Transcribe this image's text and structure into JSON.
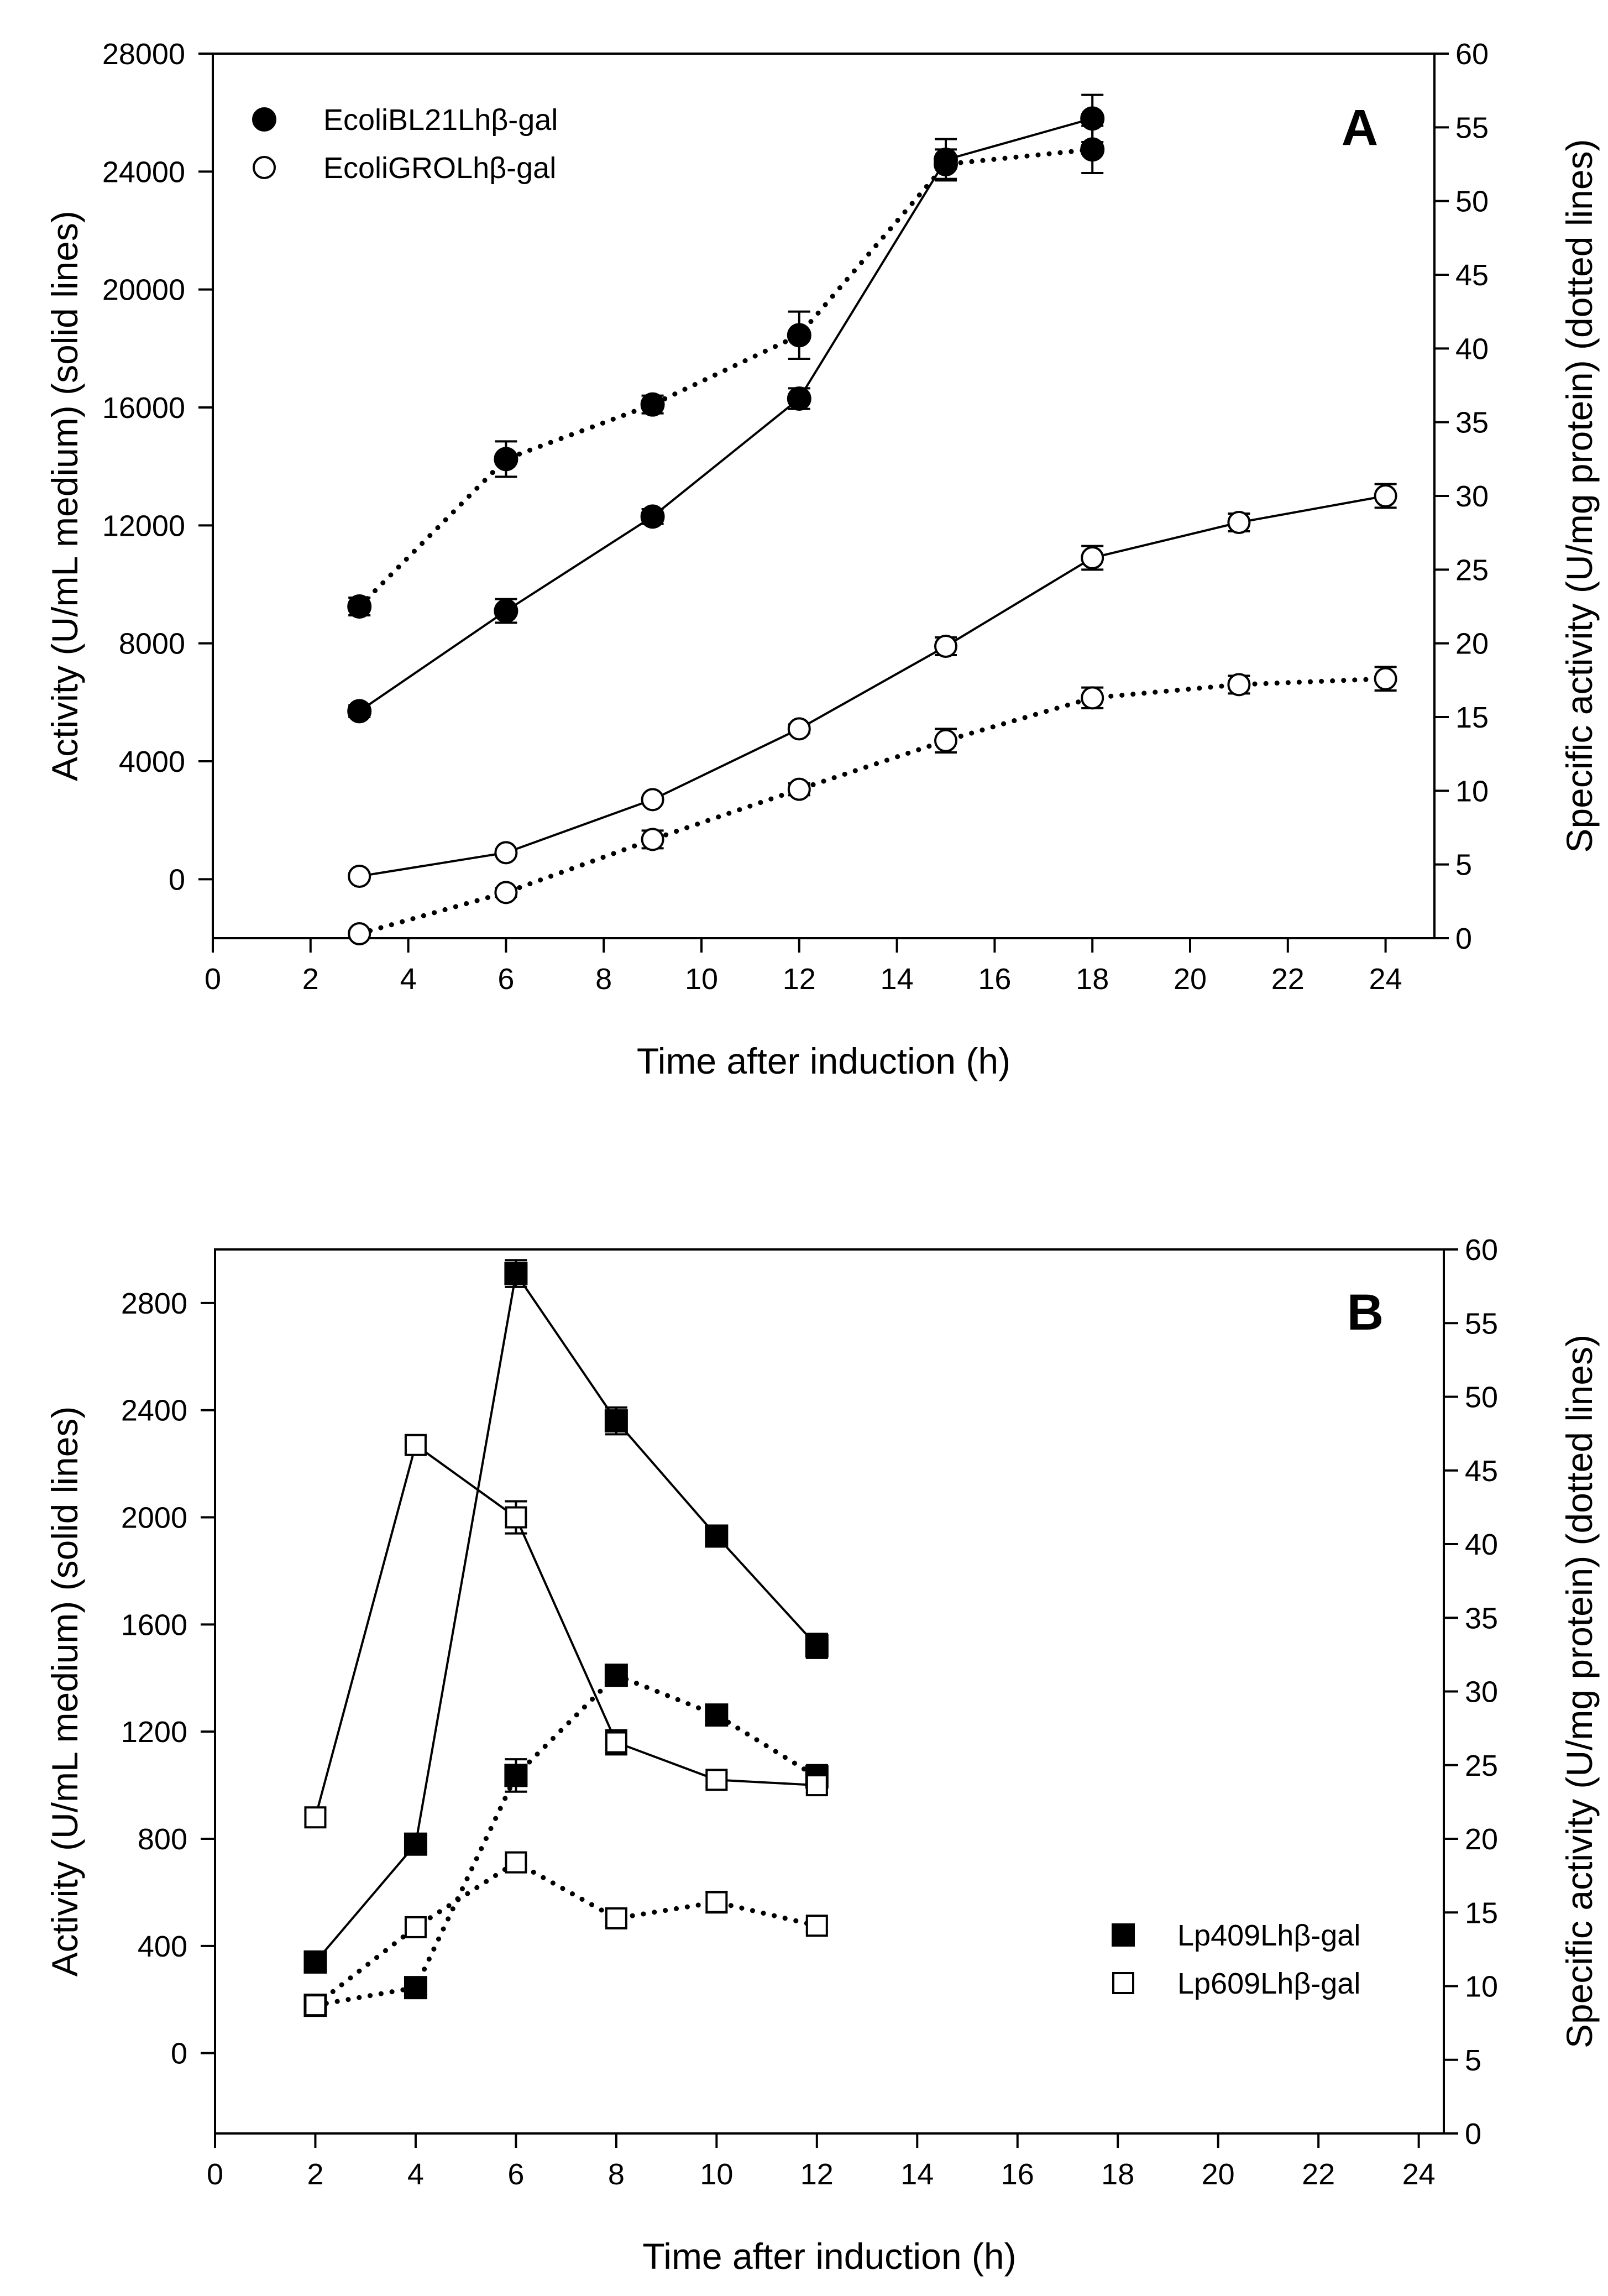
{
  "chart_data": [
    {
      "type": "line",
      "panel_label": "A",
      "xlabel": "Time after induction (h)",
      "ylabel_left": "Activity (U/mL medium) (solid lines)",
      "ylabel_right": "Specific activity (U/mg protein) (dotted lines)",
      "xlim": [
        0,
        25
      ],
      "ylim_left": [
        -2000,
        28000
      ],
      "ylim_right": [
        0,
        60
      ],
      "x_ticks": [
        0,
        2,
        4,
        6,
        8,
        10,
        12,
        14,
        16,
        18,
        20,
        22,
        24
      ],
      "yleft_ticks": [
        0,
        4000,
        8000,
        12000,
        16000,
        20000,
        24000,
        28000
      ],
      "yright_ticks": [
        0,
        5,
        10,
        15,
        20,
        25,
        30,
        35,
        40,
        45,
        50,
        55,
        60
      ],
      "legend_position": "top-left",
      "legend": [
        {
          "label": "EcoliBL21Lhβ-gal",
          "marker": "filled-circle"
        },
        {
          "label": "EcoliGROLhβ-gal",
          "marker": "open-circle"
        }
      ],
      "series": [
        {
          "name": "EcoliBL21Lhβ-gal activity",
          "axis": "left",
          "style": "solid",
          "marker": "filled-circle",
          "x": [
            3,
            6,
            9,
            12,
            15,
            18
          ],
          "values": [
            5700,
            9100,
            12300,
            16300,
            24400,
            25800
          ],
          "errors": [
            200,
            400,
            250,
            350,
            700,
            800
          ]
        },
        {
          "name": "EcoliBL21Lhβ-gal specific activity",
          "axis": "right",
          "style": "dotted",
          "marker": "filled-circle",
          "x": [
            3,
            6,
            9,
            12,
            15,
            18
          ],
          "values": [
            22.5,
            32.5,
            36.2,
            40.9,
            52.5,
            53.5
          ],
          "errors": [
            0.6,
            1.2,
            0.6,
            1.6,
            1.0,
            1.6
          ]
        },
        {
          "name": "EcoliGROLhβ-gal activity",
          "axis": "left",
          "style": "solid",
          "marker": "open-circle",
          "x": [
            3,
            6,
            9,
            12,
            15,
            18,
            21,
            24
          ],
          "values": [
            100,
            900,
            2700,
            5100,
            7900,
            10900,
            12100,
            13000
          ],
          "errors": [
            100,
            100,
            100,
            150,
            300,
            400,
            300,
            400
          ]
        },
        {
          "name": "EcoliGROLhβ-gal specific activity",
          "axis": "right",
          "style": "dotted",
          "marker": "open-circle",
          "x": [
            3,
            6,
            9,
            12,
            15,
            18,
            21,
            24
          ],
          "values": [
            0.3,
            3.1,
            6.7,
            10.1,
            13.4,
            16.3,
            17.2,
            17.6
          ],
          "errors": [
            0.2,
            0.3,
            0.6,
            0.4,
            0.8,
            0.7,
            0.6,
            0.8
          ]
        }
      ]
    },
    {
      "type": "line",
      "panel_label": "B",
      "xlabel": "Time after induction (h)",
      "ylabel_left": "Activity (U/mL medium) (solid lines)",
      "ylabel_right": "Specific activity (U/mg protein) (dotted lines)",
      "xlim": [
        0,
        24.5
      ],
      "ylim_left": [
        -300,
        3000
      ],
      "ylim_right": [
        0,
        60
      ],
      "x_ticks": [
        0,
        2,
        4,
        6,
        8,
        10,
        12,
        14,
        16,
        18,
        20,
        22,
        24
      ],
      "yleft_ticks": [
        0,
        400,
        800,
        1200,
        1600,
        2000,
        2400,
        2800
      ],
      "yright_ticks": [
        0,
        5,
        10,
        15,
        20,
        25,
        30,
        35,
        40,
        45,
        50,
        55,
        60
      ],
      "legend_position": "bottom-right",
      "legend": [
        {
          "label": "Lp409Lhβ-gal",
          "marker": "filled-square"
        },
        {
          "label": "Lp609Lhβ-gal",
          "marker": "open-square"
        }
      ],
      "series": [
        {
          "name": "Lp409Lhβ-gal activity",
          "axis": "left",
          "style": "solid",
          "marker": "filled-square",
          "x": [
            2,
            4,
            6,
            8,
            10,
            12
          ],
          "values": [
            340,
            780,
            2910,
            2360,
            1930,
            1520
          ],
          "errors": [
            25,
            30,
            50,
            50,
            30,
            45
          ]
        },
        {
          "name": "Lp409Lhβ-gal specific activity",
          "axis": "right",
          "style": "dotted",
          "marker": "filled-square",
          "x": [
            2,
            4,
            6,
            8,
            10,
            12
          ],
          "values": [
            8.7,
            9.9,
            24.3,
            31.1,
            28.4,
            24.2
          ],
          "errors": [
            0.4,
            0.4,
            1.1,
            0.5,
            0.4,
            0.8
          ]
        },
        {
          "name": "Lp609Lhβ-gal activity",
          "axis": "left",
          "style": "solid",
          "marker": "open-square",
          "x": [
            2,
            4,
            6,
            8,
            10,
            12
          ],
          "values": [
            880,
            2270,
            2000,
            1160,
            1020,
            1000
          ],
          "errors": [
            25,
            30,
            60,
            45,
            25,
            30
          ]
        },
        {
          "name": "Lp609Lhβ-gal specific activity",
          "axis": "right",
          "style": "dotted",
          "marker": "open-square",
          "x": [
            2,
            4,
            6,
            8,
            10,
            12
          ],
          "values": [
            8.7,
            14.0,
            18.4,
            14.6,
            15.7,
            14.1
          ],
          "errors": [
            0.3,
            0.5,
            0.5,
            0.5,
            0.7,
            0.4
          ]
        }
      ]
    }
  ]
}
